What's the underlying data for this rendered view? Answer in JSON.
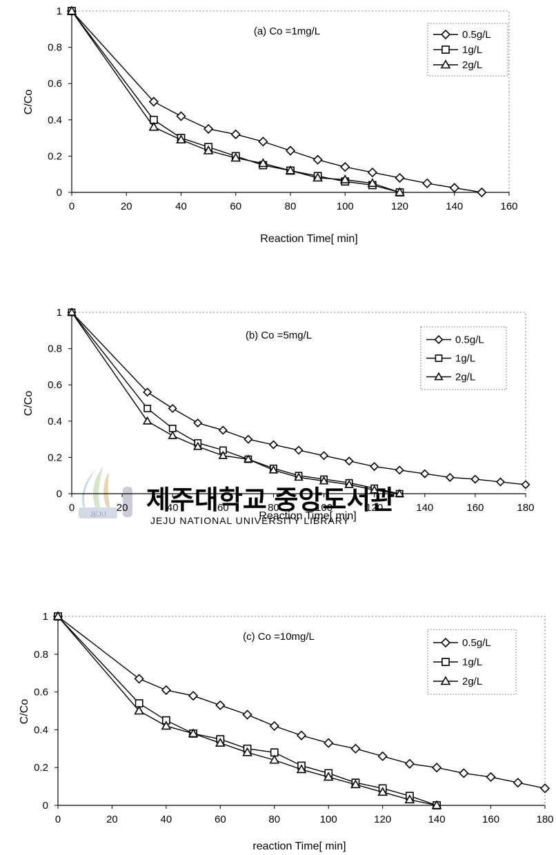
{
  "watermark": {
    "text": "제주대학교 중앙도서관",
    "subtext": "JEJU NATIONAL UNIVERSITY LIBRARY",
    "logo_text": "JEJU"
  },
  "colors": {
    "line": "#000000",
    "marker_fill": "#ffffff",
    "watermark": "#c9ced6"
  },
  "chart_data": [
    {
      "type": "line",
      "title": "(a) Co =1mg/L",
      "xlabel": "Reaction Time[ min]",
      "ylabel": "C/Co",
      "xlim": [
        0,
        160
      ],
      "ylim": [
        0,
        1
      ],
      "xticks": [
        0,
        20,
        40,
        60,
        80,
        100,
        120,
        140,
        160
      ],
      "xtick_labels": [
        "0",
        "20",
        "40",
        "60",
        "80",
        "100",
        "120",
        "140",
        "160"
      ],
      "yticks": [
        0,
        0.2,
        0.4,
        0.6,
        0.8,
        1
      ],
      "ytick_labels": [
        "0",
        "0.2",
        "0.4",
        "0.6",
        "0.8",
        "1"
      ],
      "grid": false,
      "legend": "top-right",
      "series": [
        {
          "name": "0.5g/L",
          "marker": "diamond",
          "x": [
            0,
            30,
            40,
            50,
            60,
            70,
            80,
            90,
            100,
            110,
            120,
            130,
            140,
            150
          ],
          "y": [
            1,
            0.5,
            0.42,
            0.35,
            0.32,
            0.28,
            0.23,
            0.18,
            0.14,
            0.11,
            0.08,
            0.05,
            0.025,
            0
          ]
        },
        {
          "name": "1g/L",
          "marker": "square",
          "x": [
            0,
            30,
            40,
            50,
            60,
            70,
            80,
            90,
            100,
            110,
            120
          ],
          "y": [
            1,
            0.4,
            0.3,
            0.25,
            0.2,
            0.15,
            0.12,
            0.09,
            0.06,
            0.04,
            0
          ]
        },
        {
          "name": "2g/L",
          "marker": "triangle",
          "x": [
            0,
            30,
            40,
            50,
            60,
            70,
            80,
            90,
            100,
            110,
            120
          ],
          "y": [
            1,
            0.36,
            0.29,
            0.23,
            0.19,
            0.16,
            0.12,
            0.08,
            0.07,
            0.05,
            0
          ]
        }
      ]
    },
    {
      "type": "line",
      "title": "(b) Co =5mg/L",
      "xlabel": "Reaction Time[ min]",
      "ylabel": "C/Co",
      "xlim": [
        0,
        180
      ],
      "ylim": [
        0,
        1
      ],
      "xticks": [
        0,
        20,
        40,
        60,
        80,
        100,
        120,
        140,
        160,
        180
      ],
      "xtick_labels": [
        "0",
        "20",
        "40",
        "60",
        "80",
        "100",
        "120",
        "140",
        "160",
        "180"
      ],
      "yticks": [
        0,
        0.2,
        0.4,
        0.6,
        0.8,
        1
      ],
      "ytick_labels": [
        "0",
        "0.2",
        "0.4",
        "0.6",
        "0.8",
        "1"
      ],
      "grid": false,
      "legend": "top-right",
      "series": [
        {
          "name": "0.5g/L",
          "marker": "diamond",
          "x": [
            0,
            30,
            40,
            50,
            60,
            70,
            80,
            90,
            100,
            110,
            120,
            130,
            140,
            150,
            160,
            170,
            180
          ],
          "y": [
            1,
            0.56,
            0.47,
            0.39,
            0.35,
            0.3,
            0.27,
            0.24,
            0.21,
            0.18,
            0.15,
            0.13,
            0.11,
            0.09,
            0.08,
            0.065,
            0.05
          ]
        },
        {
          "name": "1g/L",
          "marker": "square",
          "x": [
            0,
            30,
            40,
            50,
            60,
            70,
            80,
            90,
            100,
            110,
            120,
            130
          ],
          "y": [
            1,
            0.47,
            0.36,
            0.28,
            0.24,
            0.19,
            0.14,
            0.1,
            0.08,
            0.06,
            0.03,
            0
          ]
        },
        {
          "name": "2g/L",
          "marker": "triangle",
          "x": [
            0,
            30,
            40,
            50,
            60,
            70,
            80,
            90,
            100,
            110,
            120,
            130
          ],
          "y": [
            1,
            0.4,
            0.32,
            0.26,
            0.21,
            0.19,
            0.13,
            0.09,
            0.07,
            0.05,
            0.02,
            0
          ]
        }
      ]
    },
    {
      "type": "line",
      "title": "(c) Co =10mg/L",
      "xlabel": "reaction Time[ min]",
      "ylabel": "C/Co",
      "xlim": [
        0,
        180
      ],
      "ylim": [
        0,
        1
      ],
      "xticks": [
        0,
        20,
        40,
        60,
        80,
        100,
        120,
        140,
        160,
        180
      ],
      "xtick_labels": [
        "0",
        "20",
        "40",
        "60",
        "80",
        "100",
        "120",
        "140",
        "160",
        "180"
      ],
      "yticks": [
        0,
        0.2,
        0.4,
        0.6,
        0.8,
        1
      ],
      "ytick_labels": [
        "0",
        "0.2",
        "0.4",
        "0.6",
        "0.8",
        "1"
      ],
      "grid": false,
      "legend": "top-right",
      "series": [
        {
          "name": "0.5g/L",
          "marker": "diamond",
          "x": [
            0,
            30,
            40,
            50,
            60,
            70,
            80,
            90,
            100,
            110,
            120,
            130,
            140,
            150,
            160,
            170,
            180
          ],
          "y": [
            1,
            0.67,
            0.61,
            0.58,
            0.53,
            0.48,
            0.42,
            0.37,
            0.33,
            0.3,
            0.26,
            0.22,
            0.2,
            0.17,
            0.15,
            0.12,
            0.09
          ]
        },
        {
          "name": "1g/L",
          "marker": "square",
          "x": [
            0,
            30,
            40,
            50,
            60,
            70,
            80,
            90,
            100,
            110,
            120,
            130,
            140
          ],
          "y": [
            1,
            0.54,
            0.45,
            0.38,
            0.35,
            0.3,
            0.28,
            0.21,
            0.17,
            0.12,
            0.09,
            0.05,
            0
          ]
        },
        {
          "name": "2g/L",
          "marker": "triangle",
          "x": [
            0,
            30,
            40,
            50,
            60,
            70,
            80,
            90,
            100,
            110,
            120,
            130,
            140
          ],
          "y": [
            1,
            0.5,
            0.42,
            0.38,
            0.33,
            0.28,
            0.24,
            0.19,
            0.15,
            0.11,
            0.07,
            0.03,
            0
          ]
        }
      ]
    }
  ]
}
